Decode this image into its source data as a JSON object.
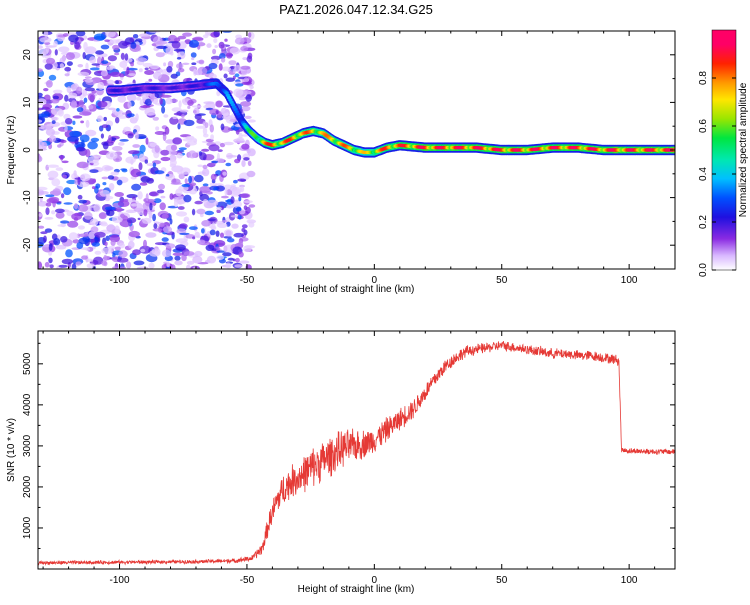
{
  "figure_title": "PAZ1.2026.047.12.34.G25",
  "chart_data": [
    {
      "type": "heatmap",
      "title": "PAZ1.2026.047.12.34.G25",
      "xlabel": "Height of straight line (km)",
      "ylabel": "Frequency (Hz)",
      "xlim": [
        -132,
        118
      ],
      "ylim": [
        -25,
        25
      ],
      "x_ticks": [
        -100,
        -50,
        0,
        50,
        100
      ],
      "x_tick_labels": [
        "-100",
        "-50",
        "0",
        "50",
        "100"
      ],
      "y_ticks": [
        -20,
        -10,
        0,
        10,
        20
      ],
      "y_tick_labels": [
        "-20",
        "-10",
        "0",
        "10",
        "20"
      ],
      "noise_region_x": [
        -132,
        -48
      ],
      "ridge": {
        "x": [
          -100,
          -90,
          -80,
          -70,
          -62,
          -58,
          -55,
          -52,
          -49,
          -46,
          -43,
          -40,
          -36,
          -32,
          -28,
          -24,
          -20,
          -16,
          -12,
          -8,
          -4,
          0,
          5,
          10,
          20,
          30,
          40,
          50,
          60,
          70,
          80,
          90,
          100,
          110,
          118
        ],
        "frequency": [
          12.5,
          13,
          13,
          13.5,
          14,
          12,
          9,
          6,
          4,
          2.5,
          1.5,
          1,
          1.5,
          2.5,
          3.5,
          4,
          3.5,
          2,
          1,
          0,
          -0.5,
          -0.5,
          0.5,
          1,
          0.5,
          0.5,
          0.5,
          0,
          0,
          0.5,
          0.5,
          0,
          0,
          0,
          0
        ],
        "amplitude": [
          0.22,
          0.22,
          0.2,
          0.22,
          0.35,
          0.4,
          0.35,
          0.4,
          0.55,
          0.7,
          0.85,
          0.9,
          0.85,
          0.9,
          0.85,
          0.85,
          0.8,
          0.85,
          0.85,
          0.8,
          0.75,
          0.8,
          0.9,
          0.9,
          0.95,
          0.95,
          0.95,
          0.95,
          0.95,
          0.95,
          0.95,
          0.95,
          0.95,
          0.95,
          0.95
        ]
      },
      "colorbar": {
        "label": "Normalized spectral amplitude",
        "range": [
          0,
          1
        ],
        "ticks": [
          0.0,
          0.2,
          0.4,
          0.6,
          0.8
        ],
        "tick_labels": [
          "0.0",
          "0.2",
          "0.4",
          "0.6",
          "0.8"
        ]
      }
    },
    {
      "type": "line",
      "xlabel": "Height of straight line (km)",
      "ylabel": "SNR (10 * v/v)",
      "xlim": [
        -132,
        118
      ],
      "ylim": [
        0,
        5800
      ],
      "x_ticks": [
        -100,
        -50,
        0,
        50,
        100
      ],
      "x_tick_labels": [
        "-100",
        "-50",
        "0",
        "50",
        "100"
      ],
      "y_ticks": [
        1000,
        2000,
        3000,
        4000,
        5000
      ],
      "y_tick_labels": [
        "1000",
        "2000",
        "3000",
        "4000",
        "5000"
      ],
      "series": [
        {
          "name": "SNR",
          "color": "#e53935",
          "x": [
            -132,
            -110,
            -90,
            -70,
            -55,
            -48,
            -44,
            -41,
            -38,
            -35,
            -32,
            -28,
            -24,
            -20,
            -16,
            -12,
            -8,
            -4,
            0,
            4,
            8,
            12,
            16,
            20,
            24,
            28,
            32,
            36,
            40,
            45,
            50,
            55,
            60,
            65,
            70,
            75,
            80,
            85,
            90,
            95,
            96,
            97,
            100,
            105,
            110,
            118
          ],
          "y": [
            150,
            160,
            170,
            180,
            200,
            260,
            500,
            1200,
            1700,
            2000,
            2150,
            2300,
            2500,
            2650,
            2800,
            2950,
            3000,
            3050,
            3150,
            3350,
            3550,
            3750,
            3950,
            4300,
            4650,
            4950,
            5150,
            5300,
            5350,
            5400,
            5450,
            5400,
            5350,
            5300,
            5250,
            5250,
            5200,
            5200,
            5150,
            5100,
            5050,
            2900,
            2880,
            2870,
            2860,
            2860
          ],
          "noise": [
            50,
            50,
            50,
            50,
            60,
            80,
            180,
            300,
            400,
            450,
            450,
            500,
            550,
            550,
            550,
            500,
            450,
            400,
            350,
            350,
            300,
            300,
            280,
            250,
            230,
            200,
            180,
            160,
            150,
            140,
            140,
            140,
            140,
            140,
            140,
            140,
            140,
            140,
            140,
            140,
            140,
            80,
            80,
            80,
            80,
            80
          ]
        }
      ]
    }
  ]
}
